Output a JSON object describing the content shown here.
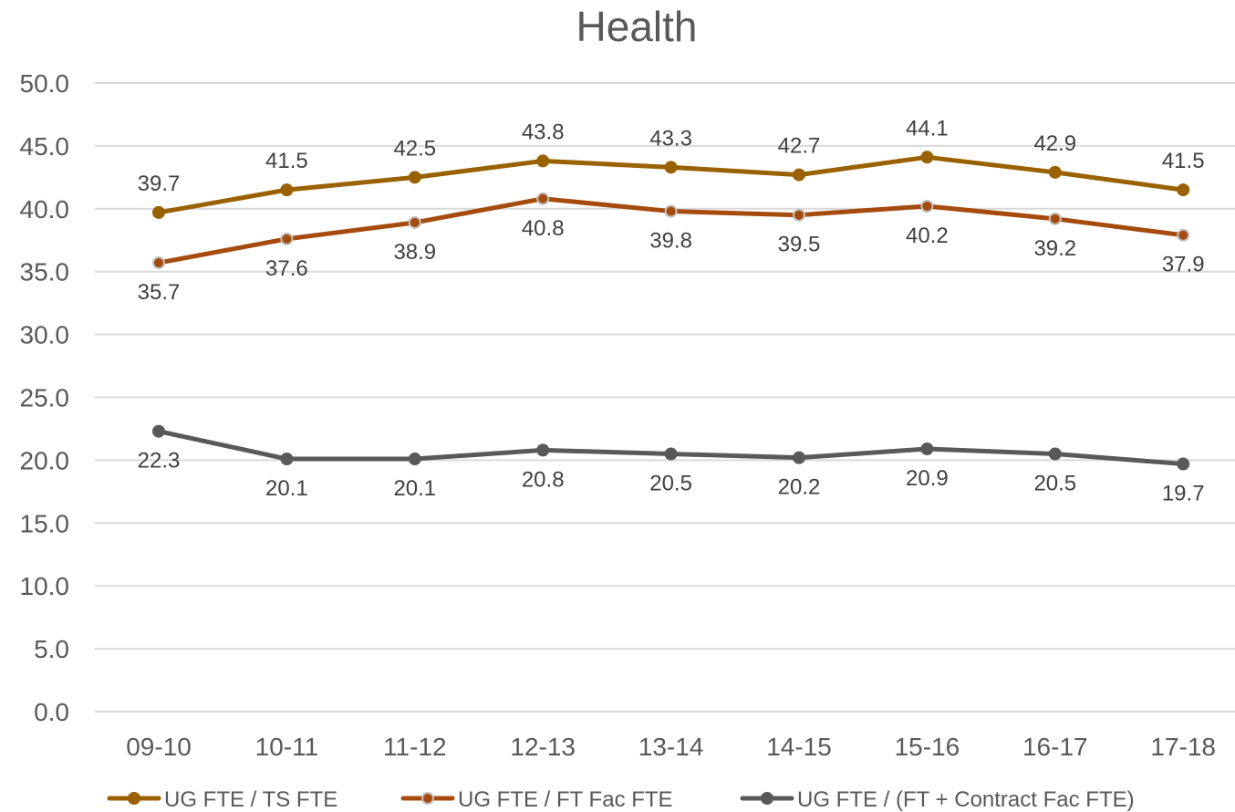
{
  "chart_data": {
    "type": "line",
    "title": "Health",
    "xlabel": "",
    "ylabel": "",
    "categories": [
      "09-10",
      "10-11",
      "11-12",
      "12-13",
      "13-14",
      "14-15",
      "15-16",
      "16-17",
      "17-18"
    ],
    "ylim": [
      0,
      50
    ],
    "yticks": [
      "0.0",
      "5.0",
      "10.0",
      "15.0",
      "20.0",
      "25.0",
      "30.0",
      "35.0",
      "40.0",
      "45.0",
      "50.0"
    ],
    "grid": true,
    "legend": "bottom",
    "series": [
      {
        "name": "UG FTE / TS FTE",
        "color": "#996100",
        "values": [
          39.7,
          41.5,
          42.5,
          43.8,
          43.3,
          42.7,
          44.1,
          42.9,
          41.5
        ],
        "labels": [
          "39.7",
          "41.5",
          "42.5",
          "43.8",
          "43.3",
          "42.7",
          "44.1",
          "42.9",
          "41.5"
        ],
        "label_position": "above"
      },
      {
        "name": "UG FTE / FT Fac FTE",
        "color": "#a64b0e",
        "values": [
          35.7,
          37.6,
          38.9,
          40.8,
          39.8,
          39.5,
          40.2,
          39.2,
          37.9
        ],
        "labels": [
          "35.7",
          "37.6",
          "38.9",
          "40.8",
          "39.8",
          "39.5",
          "40.2",
          "39.2",
          "37.9"
        ],
        "label_position": "below"
      },
      {
        "name": "UG FTE / (FT + Contract Fac FTE)",
        "color": "#595959",
        "values": [
          22.3,
          20.1,
          20.1,
          20.8,
          20.5,
          20.2,
          20.9,
          20.5,
          19.7
        ],
        "labels": [
          "22.3",
          "20.1",
          "20.1",
          "20.8",
          "20.5",
          "20.2",
          "20.9",
          "20.5",
          "19.7"
        ],
        "label_position": "below"
      }
    ]
  }
}
